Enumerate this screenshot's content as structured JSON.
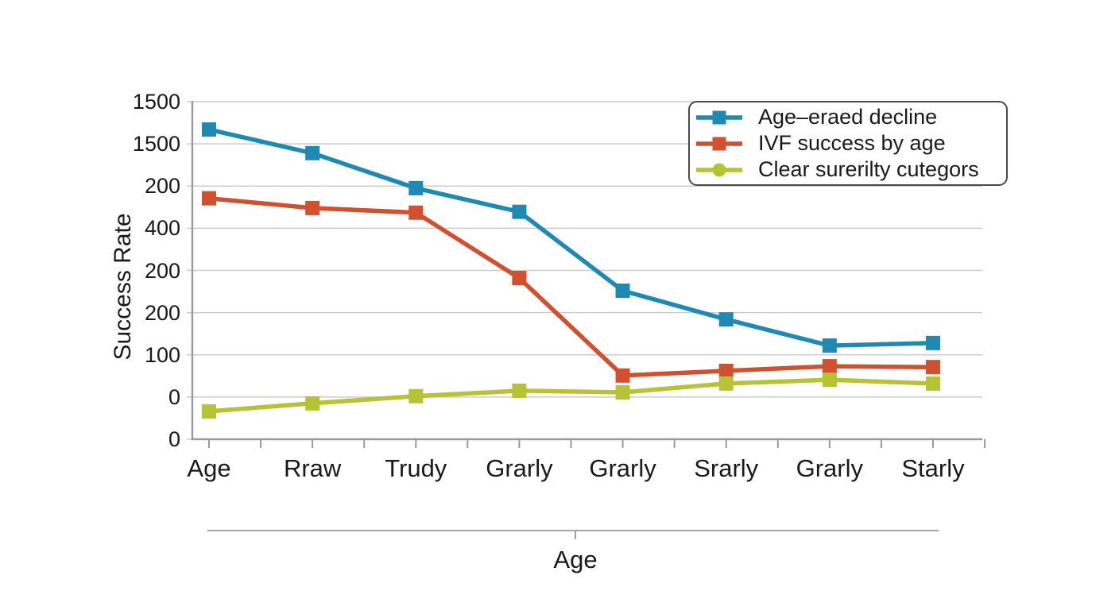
{
  "chart_data": {
    "type": "line",
    "title": "",
    "xlabel": "Age",
    "ylabel": "Success Rate",
    "categories": [
      "Age",
      "Rraw",
      "Trudy",
      "Grarly",
      "Grarly",
      "Srarly",
      "Grarly",
      "Starly"
    ],
    "ytick_labels_top_to_bottom": [
      "1500",
      "1500",
      "200",
      "400",
      "200",
      "200",
      "100",
      "0",
      "0"
    ],
    "y_unit": "gridline_steps_above_baseline",
    "ylim_gridline_steps": [
      0,
      8
    ],
    "grid": true,
    "x_minor_ticks_between_categories": true,
    "legend_position": "upper right",
    "series": [
      {
        "name": "Age–eraed decline",
        "color": "#2089b3",
        "marker": "square",
        "legend_marker": "square",
        "values": [
          7.34,
          6.78,
          5.95,
          5.39,
          3.52,
          2.84,
          2.22,
          2.28
        ]
      },
      {
        "name": "IVF success by age",
        "color": "#d05030",
        "marker": "square",
        "legend_marker": "square",
        "values": [
          5.71,
          5.48,
          5.37,
          3.82,
          1.51,
          1.62,
          1.73,
          1.71
        ]
      },
      {
        "name": "Clear surerilty cutegors",
        "color": "#b5c334",
        "marker": "square",
        "legend_marker": "circle",
        "values": [
          0.66,
          0.85,
          1.02,
          1.15,
          1.11,
          1.32,
          1.41,
          1.32
        ]
      }
    ]
  },
  "colors": {
    "background": "#ffffff",
    "gridline": "#cbcbcb",
    "axis": "#9a9a9a",
    "secondary_axis": "#a6a6a6",
    "text": "#1a1a1a",
    "legend_border": "#4a4a4a"
  }
}
